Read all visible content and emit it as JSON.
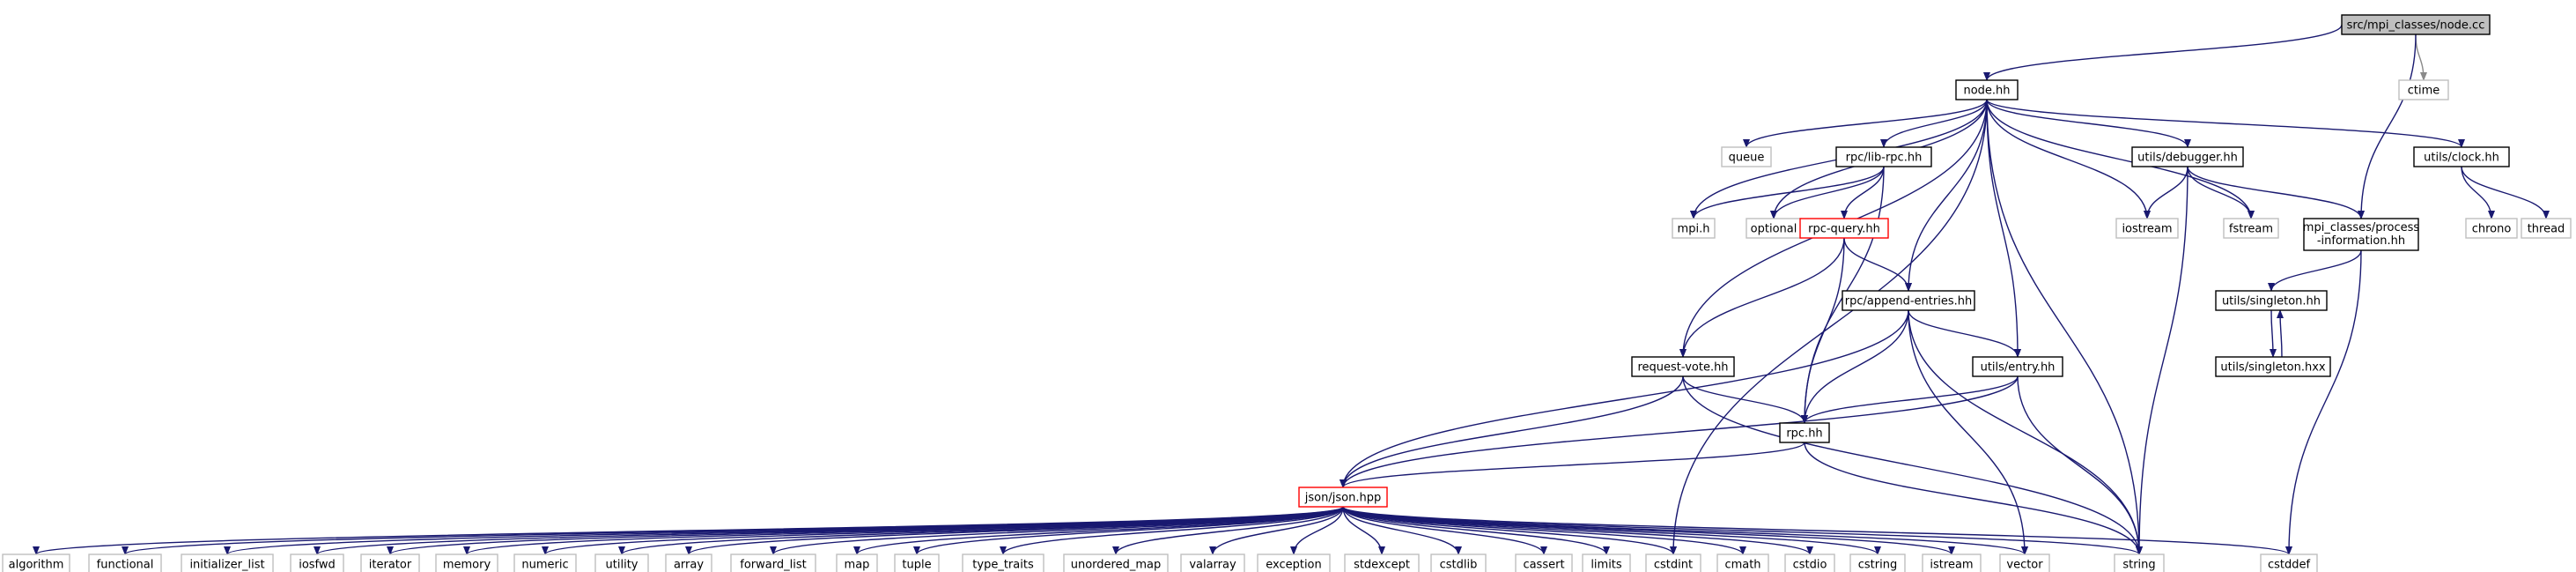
{
  "colors": {
    "edge": "#191970",
    "edge_light": "#8a8a8a",
    "root_fill": "#bfbfbf",
    "node_border": "#000000",
    "system_border": "#bfbfbf",
    "truncated_border": "#ff0000"
  },
  "nodes": [
    {
      "id": "node_cc",
      "label": "src/mpi_classes/node.cc",
      "kind": "root"
    },
    {
      "id": "ctime",
      "label": "ctime",
      "kind": "system"
    },
    {
      "id": "node_hh",
      "label": "node.hh",
      "kind": "local"
    },
    {
      "id": "queue",
      "label": "queue",
      "kind": "system"
    },
    {
      "id": "lib_rpc",
      "label": "rpc/lib-rpc.hh",
      "kind": "local"
    },
    {
      "id": "debugger",
      "label": "utils/debugger.hh",
      "kind": "local"
    },
    {
      "id": "clock",
      "label": "utils/clock.hh",
      "kind": "local"
    },
    {
      "id": "mpi_h",
      "label": "mpi.h",
      "kind": "system"
    },
    {
      "id": "optional",
      "label": "optional",
      "kind": "system"
    },
    {
      "id": "rpc_query",
      "label": "rpc-query.hh",
      "kind": "truncated"
    },
    {
      "id": "iostream",
      "label": "iostream",
      "kind": "system"
    },
    {
      "id": "fstream",
      "label": "fstream",
      "kind": "system"
    },
    {
      "id": "process_info",
      "label": [
        "mpi_classes/process",
        "-information.hh"
      ],
      "kind": "local"
    },
    {
      "id": "chrono",
      "label": "chrono",
      "kind": "system"
    },
    {
      "id": "thread",
      "label": "thread",
      "kind": "system"
    },
    {
      "id": "append_entries",
      "label": "rpc/append-entries.hh",
      "kind": "local"
    },
    {
      "id": "singleton_hh",
      "label": "utils/singleton.hh",
      "kind": "local"
    },
    {
      "id": "request_vote",
      "label": "request-vote.hh",
      "kind": "local"
    },
    {
      "id": "entry",
      "label": "utils/entry.hh",
      "kind": "local"
    },
    {
      "id": "singleton_hxx",
      "label": "utils/singleton.hxx",
      "kind": "local"
    },
    {
      "id": "rpc_hh",
      "label": "rpc.hh",
      "kind": "local"
    },
    {
      "id": "json",
      "label": "json/json.hpp",
      "kind": "truncated"
    },
    {
      "id": "algorithm",
      "label": "algorithm",
      "kind": "system"
    },
    {
      "id": "functional",
      "label": "functional",
      "kind": "system"
    },
    {
      "id": "initializer_list",
      "label": "initializer_list",
      "kind": "system"
    },
    {
      "id": "iosfwd",
      "label": "iosfwd",
      "kind": "system"
    },
    {
      "id": "iterator",
      "label": "iterator",
      "kind": "system"
    },
    {
      "id": "memory",
      "label": "memory",
      "kind": "system"
    },
    {
      "id": "numeric",
      "label": "numeric",
      "kind": "system"
    },
    {
      "id": "utility",
      "label": "utility",
      "kind": "system"
    },
    {
      "id": "array",
      "label": "array",
      "kind": "system"
    },
    {
      "id": "forward_list",
      "label": "forward_list",
      "kind": "system"
    },
    {
      "id": "map",
      "label": "map",
      "kind": "system"
    },
    {
      "id": "tuple",
      "label": "tuple",
      "kind": "system"
    },
    {
      "id": "type_traits",
      "label": "type_traits",
      "kind": "system"
    },
    {
      "id": "unordered_map",
      "label": "unordered_map",
      "kind": "system"
    },
    {
      "id": "valarray",
      "label": "valarray",
      "kind": "system"
    },
    {
      "id": "exception",
      "label": "exception",
      "kind": "system"
    },
    {
      "id": "stdexcept",
      "label": "stdexcept",
      "kind": "system"
    },
    {
      "id": "cstdlib",
      "label": "cstdlib",
      "kind": "system"
    },
    {
      "id": "cassert",
      "label": "cassert",
      "kind": "system"
    },
    {
      "id": "limits",
      "label": "limits",
      "kind": "system"
    },
    {
      "id": "cstdint",
      "label": "cstdint",
      "kind": "system"
    },
    {
      "id": "cmath",
      "label": "cmath",
      "kind": "system"
    },
    {
      "id": "cstdio",
      "label": "cstdio",
      "kind": "system"
    },
    {
      "id": "cstring",
      "label": "cstring",
      "kind": "system"
    },
    {
      "id": "istream",
      "label": "istream",
      "kind": "system"
    },
    {
      "id": "vector",
      "label": "vector",
      "kind": "system"
    },
    {
      "id": "string",
      "label": "string",
      "kind": "system"
    },
    {
      "id": "cstddef",
      "label": "cstddef",
      "kind": "system"
    }
  ],
  "edges": [
    [
      "node_cc",
      "ctime"
    ],
    [
      "node_cc",
      "node_hh"
    ],
    [
      "node_cc",
      "process_info"
    ],
    [
      "node_hh",
      "queue"
    ],
    [
      "node_hh",
      "lib_rpc"
    ],
    [
      "node_hh",
      "debugger"
    ],
    [
      "node_hh",
      "clock"
    ],
    [
      "node_hh",
      "mpi_h"
    ],
    [
      "node_hh",
      "optional"
    ],
    [
      "node_hh",
      "iostream"
    ],
    [
      "node_hh",
      "fstream"
    ],
    [
      "node_hh",
      "append_entries"
    ],
    [
      "node_hh",
      "request_vote"
    ],
    [
      "node_hh",
      "entry"
    ],
    [
      "node_hh",
      "string"
    ],
    [
      "node_hh",
      "cstdint"
    ],
    [
      "lib_rpc",
      "mpi_h"
    ],
    [
      "lib_rpc",
      "optional"
    ],
    [
      "lib_rpc",
      "rpc_query"
    ],
    [
      "lib_rpc",
      "rpc_hh"
    ],
    [
      "rpc_query",
      "append_entries"
    ],
    [
      "rpc_query",
      "request_vote"
    ],
    [
      "rpc_query",
      "rpc_hh"
    ],
    [
      "debugger",
      "iostream"
    ],
    [
      "debugger",
      "fstream"
    ],
    [
      "debugger",
      "process_info"
    ],
    [
      "debugger",
      "string"
    ],
    [
      "clock",
      "chrono"
    ],
    [
      "clock",
      "thread"
    ],
    [
      "process_info",
      "singleton_hh"
    ],
    [
      "process_info",
      "cstddef"
    ],
    [
      "singleton_hh",
      "singleton_hxx"
    ],
    [
      "singleton_hxx",
      "singleton_hh"
    ],
    [
      "append_entries",
      "entry"
    ],
    [
      "append_entries",
      "rpc_hh"
    ],
    [
      "append_entries",
      "json"
    ],
    [
      "append_entries",
      "vector"
    ],
    [
      "append_entries",
      "string"
    ],
    [
      "request_vote",
      "rpc_hh"
    ],
    [
      "request_vote",
      "json"
    ],
    [
      "request_vote",
      "string"
    ],
    [
      "entry",
      "rpc_hh"
    ],
    [
      "entry",
      "json"
    ],
    [
      "entry",
      "string"
    ],
    [
      "rpc_hh",
      "json"
    ],
    [
      "rpc_hh",
      "string"
    ],
    [
      "json",
      "algorithm"
    ],
    [
      "json",
      "functional"
    ],
    [
      "json",
      "initializer_list"
    ],
    [
      "json",
      "iosfwd"
    ],
    [
      "json",
      "iterator"
    ],
    [
      "json",
      "memory"
    ],
    [
      "json",
      "numeric"
    ],
    [
      "json",
      "utility"
    ],
    [
      "json",
      "array"
    ],
    [
      "json",
      "forward_list"
    ],
    [
      "json",
      "map"
    ],
    [
      "json",
      "tuple"
    ],
    [
      "json",
      "type_traits"
    ],
    [
      "json",
      "unordered_map"
    ],
    [
      "json",
      "valarray"
    ],
    [
      "json",
      "exception"
    ],
    [
      "json",
      "stdexcept"
    ],
    [
      "json",
      "cstdlib"
    ],
    [
      "json",
      "cassert"
    ],
    [
      "json",
      "limits"
    ],
    [
      "json",
      "cstdint"
    ],
    [
      "json",
      "cmath"
    ],
    [
      "json",
      "cstdio"
    ],
    [
      "json",
      "cstring"
    ],
    [
      "json",
      "istream"
    ],
    [
      "json",
      "vector"
    ],
    [
      "json",
      "string"
    ],
    [
      "json",
      "cstddef"
    ]
  ]
}
